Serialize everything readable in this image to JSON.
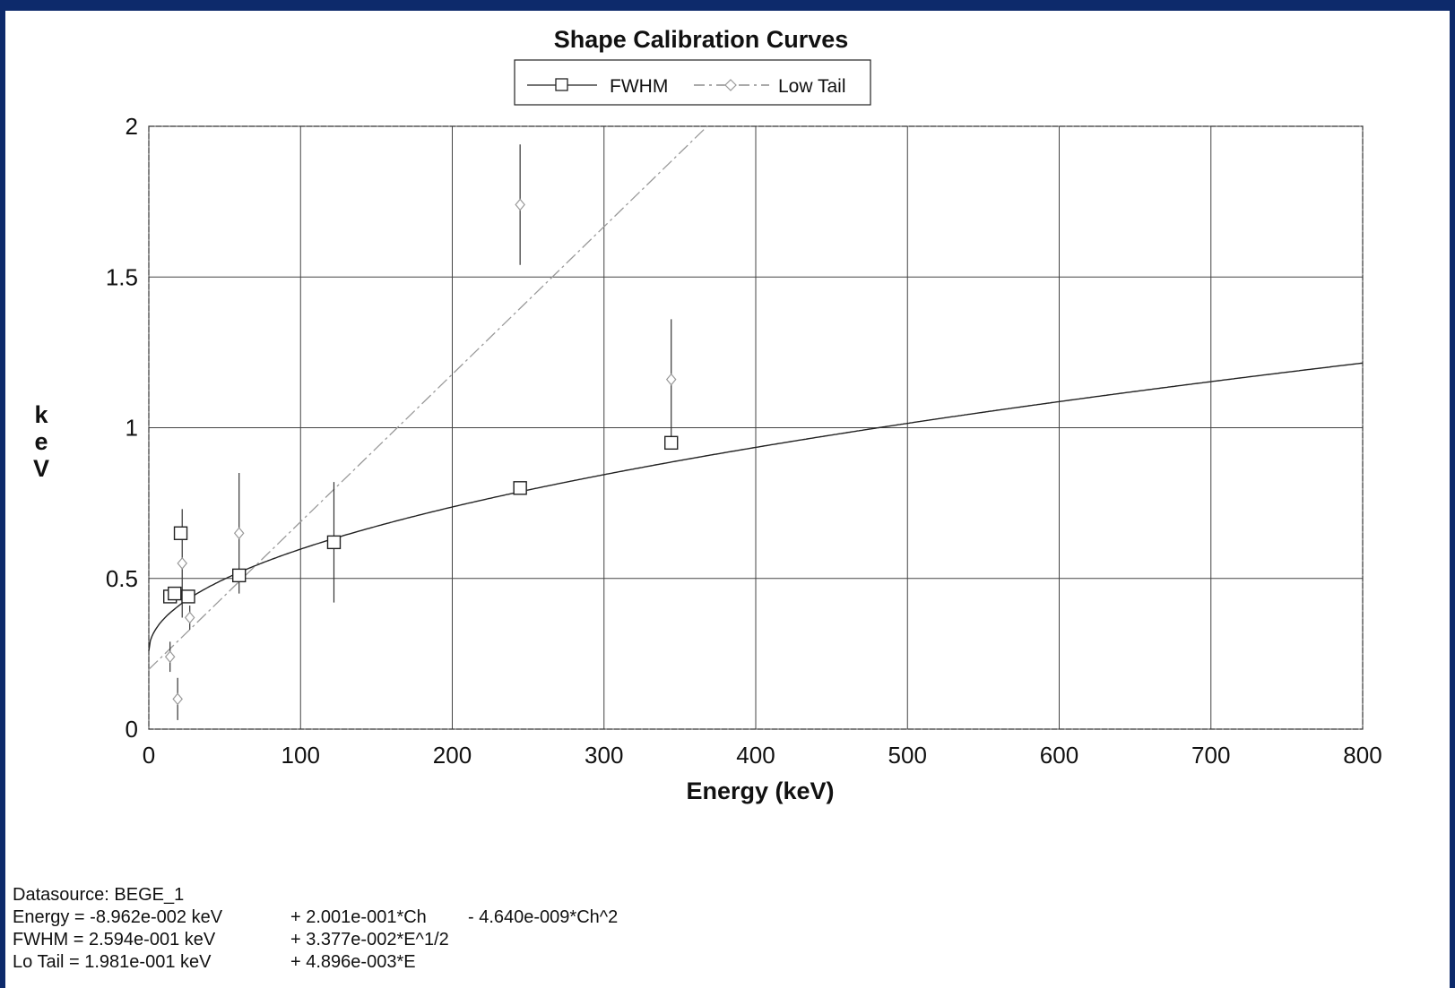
{
  "chart_data": {
    "type": "scatter",
    "title": "Shape Calibration Curves",
    "xlabel": "Energy (keV)",
    "ylabel": "keV",
    "xlim": [
      0,
      800
    ],
    "ylim": [
      0,
      2
    ],
    "x_ticks": [
      "0",
      "100",
      "200",
      "300",
      "400",
      "500",
      "600",
      "700",
      "800"
    ],
    "y_ticks": [
      "0",
      "0.5",
      "1",
      "1.5",
      "2"
    ],
    "grid": true,
    "legend_position": "top-center",
    "series": [
      {
        "name": "FWHM",
        "marker": "square",
        "line_style": "solid",
        "fit": {
          "a": 0.2594,
          "b": 0.03377,
          "form": "a + b*sqrt(E)"
        },
        "points": [
          {
            "x": 14,
            "y": 0.44
          },
          {
            "x": 17,
            "y": 0.45
          },
          {
            "x": 21,
            "y": 0.65
          },
          {
            "x": 26,
            "y": 0.44
          },
          {
            "x": 59.5,
            "y": 0.51
          },
          {
            "x": 122,
            "y": 0.62
          },
          {
            "x": 244.7,
            "y": 0.8
          },
          {
            "x": 344.3,
            "y": 0.95
          }
        ]
      },
      {
        "name": "Low Tail",
        "marker": "diamond",
        "line_style": "dash-dot",
        "color": "#9a9a9a",
        "fit": {
          "a": 0.1981,
          "b": 0.004896,
          "form": "a + b*E"
        },
        "points": [
          {
            "x": 14,
            "y": 0.24,
            "err": 0.05
          },
          {
            "x": 19,
            "y": 0.1,
            "err": 0.07
          },
          {
            "x": 22,
            "y": 0.55,
            "err": 0.18
          },
          {
            "x": 27,
            "y": 0.37,
            "err": 0.04
          },
          {
            "x": 59.5,
            "y": 0.65,
            "err": 0.2
          },
          {
            "x": 122,
            "y": 0.62,
            "err": 0.2
          },
          {
            "x": 244.7,
            "y": 1.74,
            "err": 0.2
          },
          {
            "x": 344.3,
            "y": 1.16,
            "err": 0.2
          }
        ]
      }
    ]
  },
  "footer": {
    "datasource": "Datasource:  BEGE_1",
    "energy_label": "Energy = -8.962e-002 keV",
    "energy_term1": "+ 2.001e-001*Ch",
    "energy_term2": "- 4.640e-009*Ch^2",
    "fwhm_label": "FWHM  =  2.594e-001 keV",
    "fwhm_term1": "+ 3.377e-002*E^1/2",
    "lotail_label": "Lo Tail  =  1.981e-001 keV",
    "lotail_term1": "+ 4.896e-003*E"
  }
}
